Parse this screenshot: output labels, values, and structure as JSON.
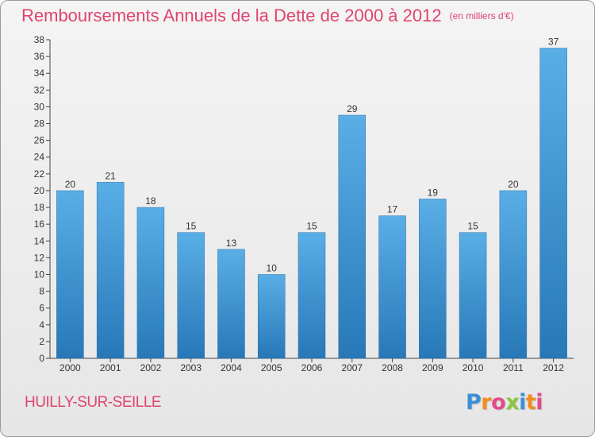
{
  "title": "Remboursements Annuels de la Dette de 2000 à 2012",
  "units": "(en milliers d'€)",
  "town": "HUILLY-SUR-SEILLE",
  "logo": {
    "letters": [
      "P",
      "r",
      "o",
      "x",
      "i",
      "t",
      "i"
    ],
    "colors": [
      "#3b8fd6",
      "#f28c1e",
      "#e34a8a",
      "#8cc63f",
      "#3b8fd6",
      "#f28c1e",
      "#e34a8a"
    ]
  },
  "colors": {
    "title": "#e0446f",
    "bar_top": "#5aaee6",
    "bar_bottom": "#2878b8"
  },
  "chart_data": {
    "type": "bar",
    "title": "Remboursements Annuels de la Dette de 2000 à 2012",
    "subtitle": "(en milliers d'€)",
    "xlabel": "",
    "ylabel": "",
    "categories": [
      "2000",
      "2001",
      "2002",
      "2003",
      "2004",
      "2005",
      "2006",
      "2007",
      "2008",
      "2009",
      "2010",
      "2011",
      "2012"
    ],
    "values": [
      20,
      21,
      18,
      15,
      13,
      10,
      15,
      29,
      17,
      19,
      15,
      20,
      37
    ],
    "ylim": [
      0,
      38
    ],
    "yticks": [
      0,
      2,
      4,
      6,
      8,
      10,
      12,
      14,
      16,
      18,
      20,
      22,
      24,
      26,
      28,
      30,
      32,
      34,
      36,
      38
    ],
    "grid": false,
    "legend": "none"
  }
}
